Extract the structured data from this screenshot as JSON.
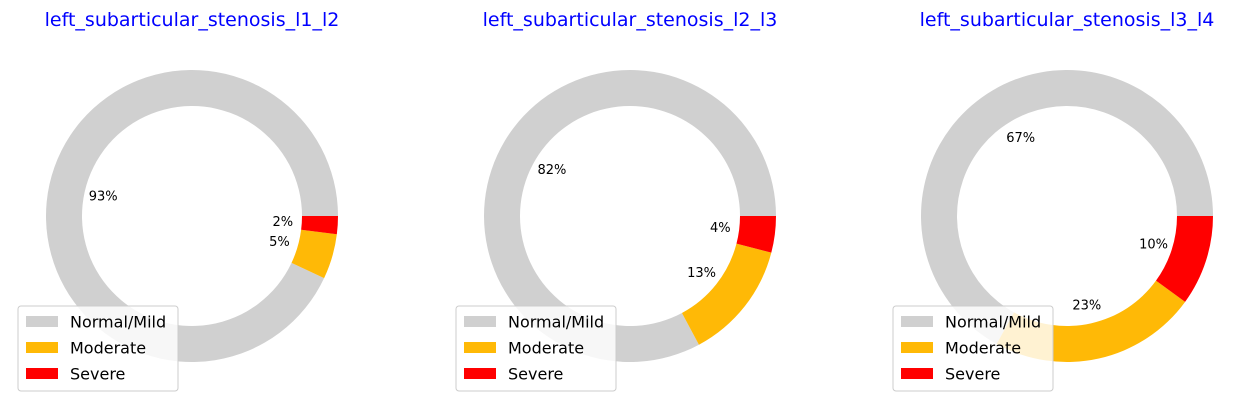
{
  "title_color": "#0000ff",
  "chart_data": [
    {
      "type": "pie",
      "title": "left_subarticular_stenosis_l1_l2",
      "categories": [
        "Normal/Mild",
        "Moderate",
        "Severe"
      ],
      "values": [
        93,
        5,
        2
      ],
      "labels": [
        "93%",
        "5%",
        "2%"
      ],
      "colors": [
        "#d0d0d0",
        "#ffb906",
        "#ff0000"
      ],
      "legend": "lower-left"
    },
    {
      "type": "pie",
      "title": "left_subarticular_stenosis_l2_l3",
      "categories": [
        "Normal/Mild",
        "Moderate",
        "Severe"
      ],
      "values": [
        82,
        13,
        4
      ],
      "labels": [
        "82%",
        "13%",
        "4%"
      ],
      "colors": [
        "#d0d0d0",
        "#ffb906",
        "#ff0000"
      ],
      "legend": "lower-left"
    },
    {
      "type": "pie",
      "title": "left_subarticular_stenosis_l3_l4",
      "categories": [
        "Normal/Mild",
        "Moderate",
        "Severe"
      ],
      "values": [
        67,
        23,
        10
      ],
      "labels": [
        "67%",
        "23%",
        "10%"
      ],
      "colors": [
        "#d0d0d0",
        "#ffb906",
        "#ff0000"
      ],
      "legend": "lower-left"
    }
  ]
}
